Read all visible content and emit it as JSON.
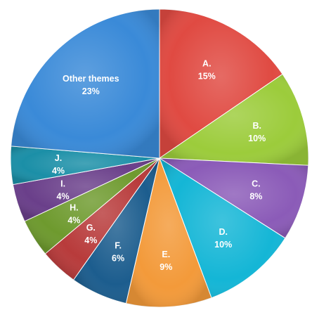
{
  "chart_data": {
    "type": "pie",
    "slices": [
      {
        "name": "A.",
        "value": 15,
        "label": "15%",
        "color": "#e04a42"
      },
      {
        "name": "B.",
        "value": 10,
        "label": "10%",
        "color": "#9ccc3b"
      },
      {
        "name": "C.",
        "value": 8,
        "label": "8%",
        "color": "#8b5bb8"
      },
      {
        "name": "D.",
        "value": 10,
        "label": "10%",
        "color": "#14b6d6"
      },
      {
        "name": "E.",
        "value": 9,
        "label": "9%",
        "color": "#f39a3a"
      },
      {
        "name": "F.",
        "value": 6,
        "label": "6%",
        "color": "#1c5d8e"
      },
      {
        "name": "G.",
        "value": 4,
        "label": "4%",
        "color": "#b83b3b"
      },
      {
        "name": "H.",
        "value": 4,
        "label": "4%",
        "color": "#6e9a2e"
      },
      {
        "name": "I.",
        "value": 4,
        "label": "4%",
        "color": "#6a3f8a"
      },
      {
        "name": "J.",
        "value": 4,
        "label": "4%",
        "color": "#1b8fa7"
      },
      {
        "name": "Other themes",
        "value": 23,
        "label": "23%",
        "color": "#3a8ad8"
      }
    ]
  }
}
